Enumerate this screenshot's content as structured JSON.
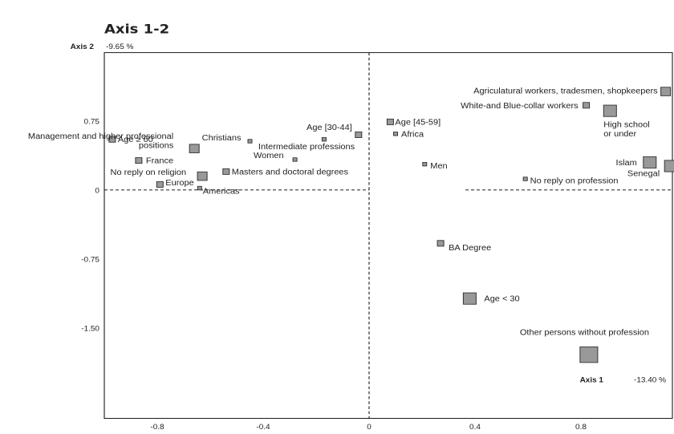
{
  "chart_data": {
    "type": "scatter",
    "title": "Axis 1-2",
    "xlabel": "Axis 1",
    "ylabel": "Axis 2",
    "x_inertia": "-13.40 %",
    "y_inertia": "-9.65 %",
    "xlim": [
      -1.0,
      1.15
    ],
    "ylim": [
      -1.82,
      1.13
    ],
    "x_ticks": [
      "-0.8",
      "-0.4",
      "0",
      "0.4",
      "0.8"
    ],
    "x_tick_values": [
      -0.8,
      -0.4,
      0,
      0.4,
      0.8
    ],
    "y_ticks": [
      "0.75",
      "0",
      "-0.75",
      "-1.50"
    ],
    "y_tick_values": [
      0.75,
      0,
      -0.75,
      -1.5
    ],
    "grid": false,
    "points": [
      {
        "label": "Agriculatural workers, tradesmen, shopkeepers",
        "x": 1.12,
        "y": 1.07,
        "size": 2
      },
      {
        "label": "White-and Blue-collar workers",
        "x": 0.82,
        "y": 0.92,
        "size": 1
      },
      {
        "label": "High school\nor under",
        "x": 0.91,
        "y": 0.86,
        "size": 3
      },
      {
        "label": "Age [45-59]",
        "x": 0.08,
        "y": 0.74,
        "size": 1
      },
      {
        "label": "Age [30-44]",
        "x": -0.04,
        "y": 0.6,
        "size": 1
      },
      {
        "label": "Africa",
        "x": 0.1,
        "y": 0.61,
        "size": 0
      },
      {
        "label": "Age ≥ 60",
        "x": -0.97,
        "y": 0.55,
        "size": 1
      },
      {
        "label": "Intermediate professions",
        "x": -0.17,
        "y": 0.55,
        "size": 0
      },
      {
        "label": "Christians",
        "x": -0.45,
        "y": 0.53,
        "size": 0
      },
      {
        "label": "Management and higher professional\npositions",
        "x": -0.66,
        "y": 0.45,
        "size": 2
      },
      {
        "label": "Islam",
        "x": 1.06,
        "y": 0.3,
        "size": 3
      },
      {
        "label": "Women",
        "x": -0.28,
        "y": 0.33,
        "size": 0
      },
      {
        "label": "France",
        "x": -0.87,
        "y": 0.32,
        "size": 1
      },
      {
        "label": "Men",
        "x": 0.21,
        "y": 0.28,
        "size": 0
      },
      {
        "label": "Senegal",
        "x": 1.14,
        "y": 0.26,
        "size": 3
      },
      {
        "label": "Masters and doctoral degrees",
        "x": -0.54,
        "y": 0.2,
        "size": 1
      },
      {
        "label": "No reply on religion",
        "x": -0.63,
        "y": 0.15,
        "size": 2
      },
      {
        "label": "No reply on profession",
        "x": 0.59,
        "y": 0.12,
        "size": 0
      },
      {
        "label": "Europe",
        "x": -0.79,
        "y": 0.06,
        "size": 1
      },
      {
        "label": "Americas",
        "x": -0.64,
        "y": 0.02,
        "size": 0
      },
      {
        "label": "BA Degree",
        "x": 0.27,
        "y": -0.58,
        "size": 1
      },
      {
        "label": "Age < 30",
        "x": 0.38,
        "y": -1.18,
        "size": 3
      },
      {
        "label": "Other persons without profession",
        "x": 0.83,
        "y": -1.79,
        "size": 4
      }
    ]
  }
}
